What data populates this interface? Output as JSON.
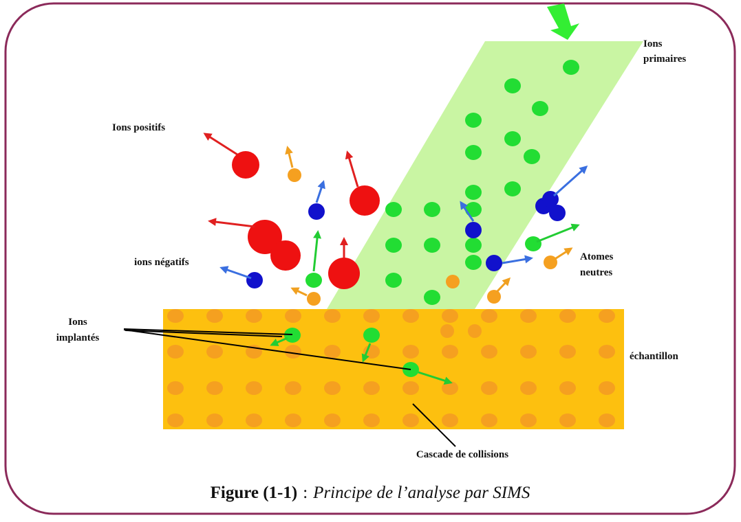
{
  "labels": {
    "ions_primaires": [
      "Ions",
      "primaires"
    ],
    "ions_positifs": "Ions positifs",
    "ions_negatifs": "ions négatifs",
    "atomes_neutres": [
      "Atomes",
      "neutres"
    ],
    "ions_implantes": [
      "Ions",
      "implantés"
    ],
    "echantillon": "échantillon",
    "cascade": "Cascade de collisions"
  },
  "caption": {
    "number": "Figure (1-1)",
    "separator": ":",
    "text": "Principe de l’analyse par SIMS"
  }
}
